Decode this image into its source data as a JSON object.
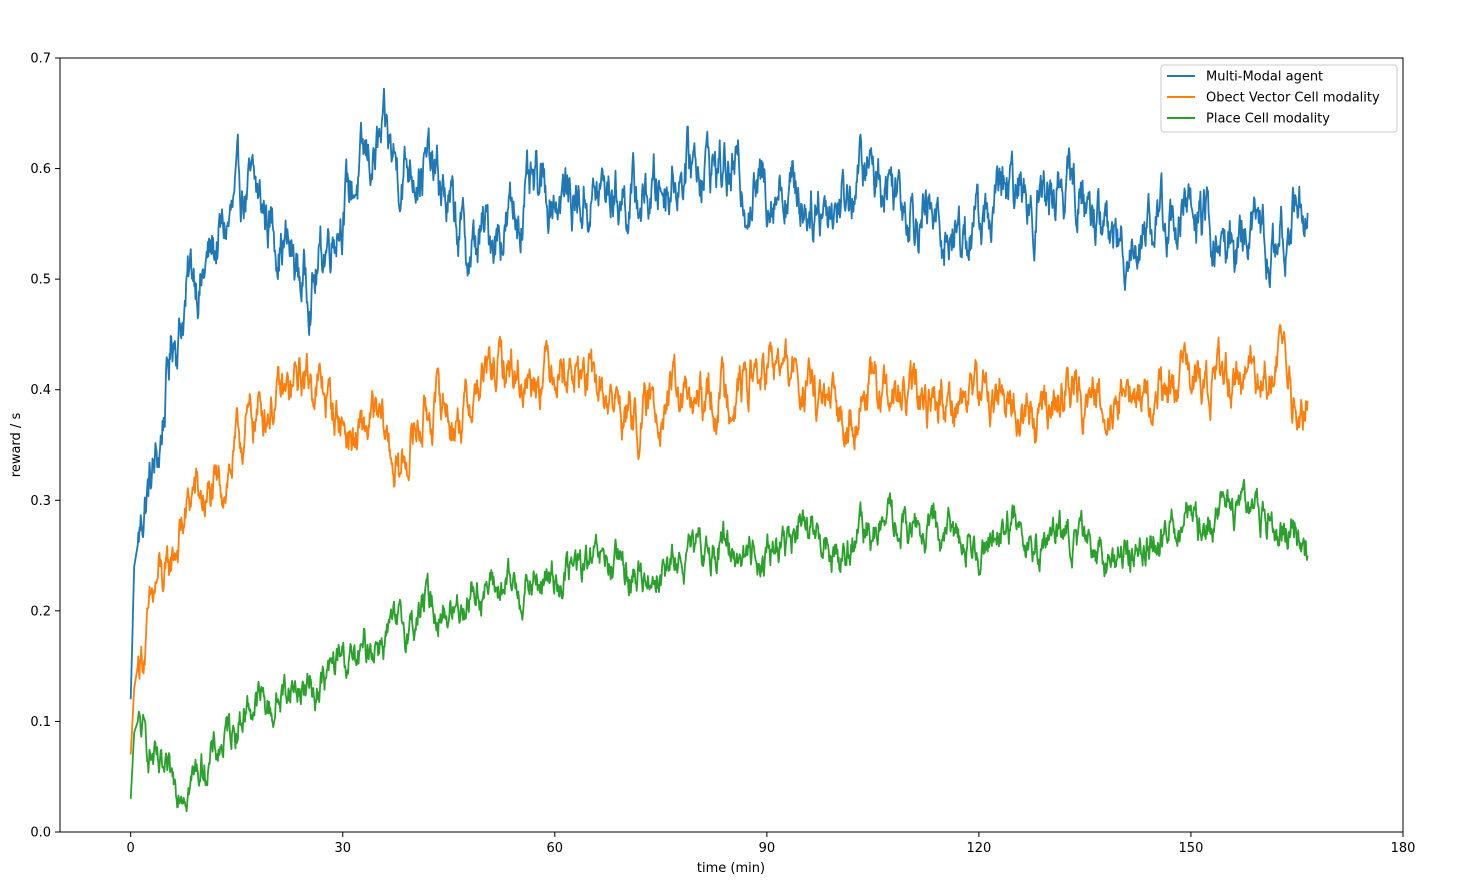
{
  "chart_data": {
    "type": "line",
    "title": "",
    "xlabel": "time (min)",
    "ylabel": "reward / s",
    "xlim": [
      -10,
      180
    ],
    "ylim": [
      0.0,
      0.7
    ],
    "xticks": [
      0,
      30,
      60,
      90,
      120,
      150,
      180
    ],
    "yticks": [
      0.0,
      0.1,
      0.2,
      0.3,
      0.4,
      0.5,
      0.6,
      0.7
    ],
    "xtick_labels": [
      "0",
      "30",
      "60",
      "90",
      "120",
      "150",
      "180"
    ],
    "ytick_labels": [
      "0.0",
      "0.1",
      "0.2",
      "0.3",
      "0.4",
      "0.5",
      "0.6",
      "0.7"
    ],
    "grid": false,
    "legend_position": "top-right",
    "series": [
      {
        "name": "Multi-Modal agent",
        "color": "#1f77b4",
        "x": [
          0,
          0.5,
          1,
          2,
          3,
          4,
          5,
          6,
          7,
          8,
          9,
          10,
          12,
          14,
          16,
          18,
          20,
          22,
          24,
          26,
          28,
          30,
          32,
          34,
          36,
          38,
          40,
          42,
          44,
          46,
          48,
          50,
          53,
          56,
          60,
          64,
          68,
          72,
          76,
          80,
          84,
          88,
          92,
          96,
          100,
          104,
          108,
          112,
          116,
          120,
          124,
          128,
          132,
          136,
          140,
          144,
          148,
          152,
          155,
          158,
          162,
          165,
          166.5
        ],
        "y": [
          0.12,
          0.24,
          0.26,
          0.3,
          0.32,
          0.34,
          0.4,
          0.45,
          0.46,
          0.49,
          0.51,
          0.5,
          0.53,
          0.55,
          0.58,
          0.57,
          0.55,
          0.53,
          0.5,
          0.5,
          0.54,
          0.57,
          0.59,
          0.61,
          0.62,
          0.6,
          0.61,
          0.6,
          0.58,
          0.55,
          0.52,
          0.54,
          0.55,
          0.57,
          0.58,
          0.57,
          0.58,
          0.57,
          0.59,
          0.61,
          0.6,
          0.58,
          0.59,
          0.57,
          0.57,
          0.6,
          0.59,
          0.56,
          0.54,
          0.55,
          0.58,
          0.57,
          0.59,
          0.56,
          0.53,
          0.55,
          0.56,
          0.55,
          0.52,
          0.55,
          0.52,
          0.57,
          0.56
        ]
      },
      {
        "name": "Obect Vector Cell modality",
        "color": "#ff7f0e",
        "x": [
          0,
          0.5,
          1,
          2,
          3,
          4,
          5,
          6,
          7,
          8,
          9,
          10,
          12,
          14,
          16,
          18,
          20,
          22,
          24,
          26,
          28,
          30,
          32,
          34,
          36,
          38,
          40,
          42,
          44,
          46,
          48,
          50,
          53,
          56,
          60,
          64,
          68,
          72,
          76,
          80,
          84,
          88,
          92,
          96,
          100,
          104,
          108,
          112,
          116,
          120,
          124,
          128,
          132,
          136,
          140,
          144,
          148,
          152,
          155,
          158,
          162,
          165,
          166.5
        ],
        "y": [
          0.07,
          0.13,
          0.15,
          0.17,
          0.2,
          0.23,
          0.22,
          0.25,
          0.27,
          0.29,
          0.31,
          0.3,
          0.3,
          0.33,
          0.36,
          0.38,
          0.39,
          0.39,
          0.41,
          0.41,
          0.39,
          0.37,
          0.35,
          0.37,
          0.36,
          0.32,
          0.36,
          0.38,
          0.39,
          0.37,
          0.39,
          0.41,
          0.42,
          0.41,
          0.43,
          0.41,
          0.39,
          0.37,
          0.4,
          0.38,
          0.4,
          0.41,
          0.42,
          0.4,
          0.37,
          0.4,
          0.39,
          0.39,
          0.39,
          0.4,
          0.39,
          0.37,
          0.4,
          0.39,
          0.4,
          0.39,
          0.41,
          0.4,
          0.42,
          0.41,
          0.43,
          0.38,
          0.39
        ]
      },
      {
        "name": "Place Cell modality",
        "color": "#2ca02c",
        "x": [
          0,
          0.5,
          1,
          2,
          3,
          4,
          5,
          6,
          7,
          8,
          9,
          10,
          12,
          14,
          16,
          18,
          20,
          22,
          24,
          26,
          28,
          30,
          32,
          34,
          36,
          38,
          40,
          42,
          44,
          46,
          48,
          50,
          53,
          56,
          60,
          64,
          68,
          72,
          76,
          80,
          84,
          88,
          92,
          96,
          100,
          104,
          108,
          112,
          116,
          120,
          124,
          128,
          132,
          136,
          140,
          144,
          148,
          152,
          155,
          158,
          162,
          165,
          166.5
        ],
        "y": [
          0.03,
          0.09,
          0.1,
          0.08,
          0.07,
          0.05,
          0.04,
          0.04,
          0.05,
          0.05,
          0.05,
          0.06,
          0.07,
          0.09,
          0.11,
          0.12,
          0.11,
          0.13,
          0.13,
          0.13,
          0.14,
          0.16,
          0.15,
          0.17,
          0.18,
          0.18,
          0.19,
          0.21,
          0.2,
          0.2,
          0.22,
          0.22,
          0.22,
          0.22,
          0.23,
          0.24,
          0.24,
          0.23,
          0.24,
          0.25,
          0.26,
          0.25,
          0.26,
          0.27,
          0.25,
          0.27,
          0.28,
          0.27,
          0.27,
          0.26,
          0.28,
          0.26,
          0.27,
          0.25,
          0.25,
          0.26,
          0.28,
          0.27,
          0.29,
          0.3,
          0.28,
          0.28,
          0.25
        ]
      }
    ]
  }
}
